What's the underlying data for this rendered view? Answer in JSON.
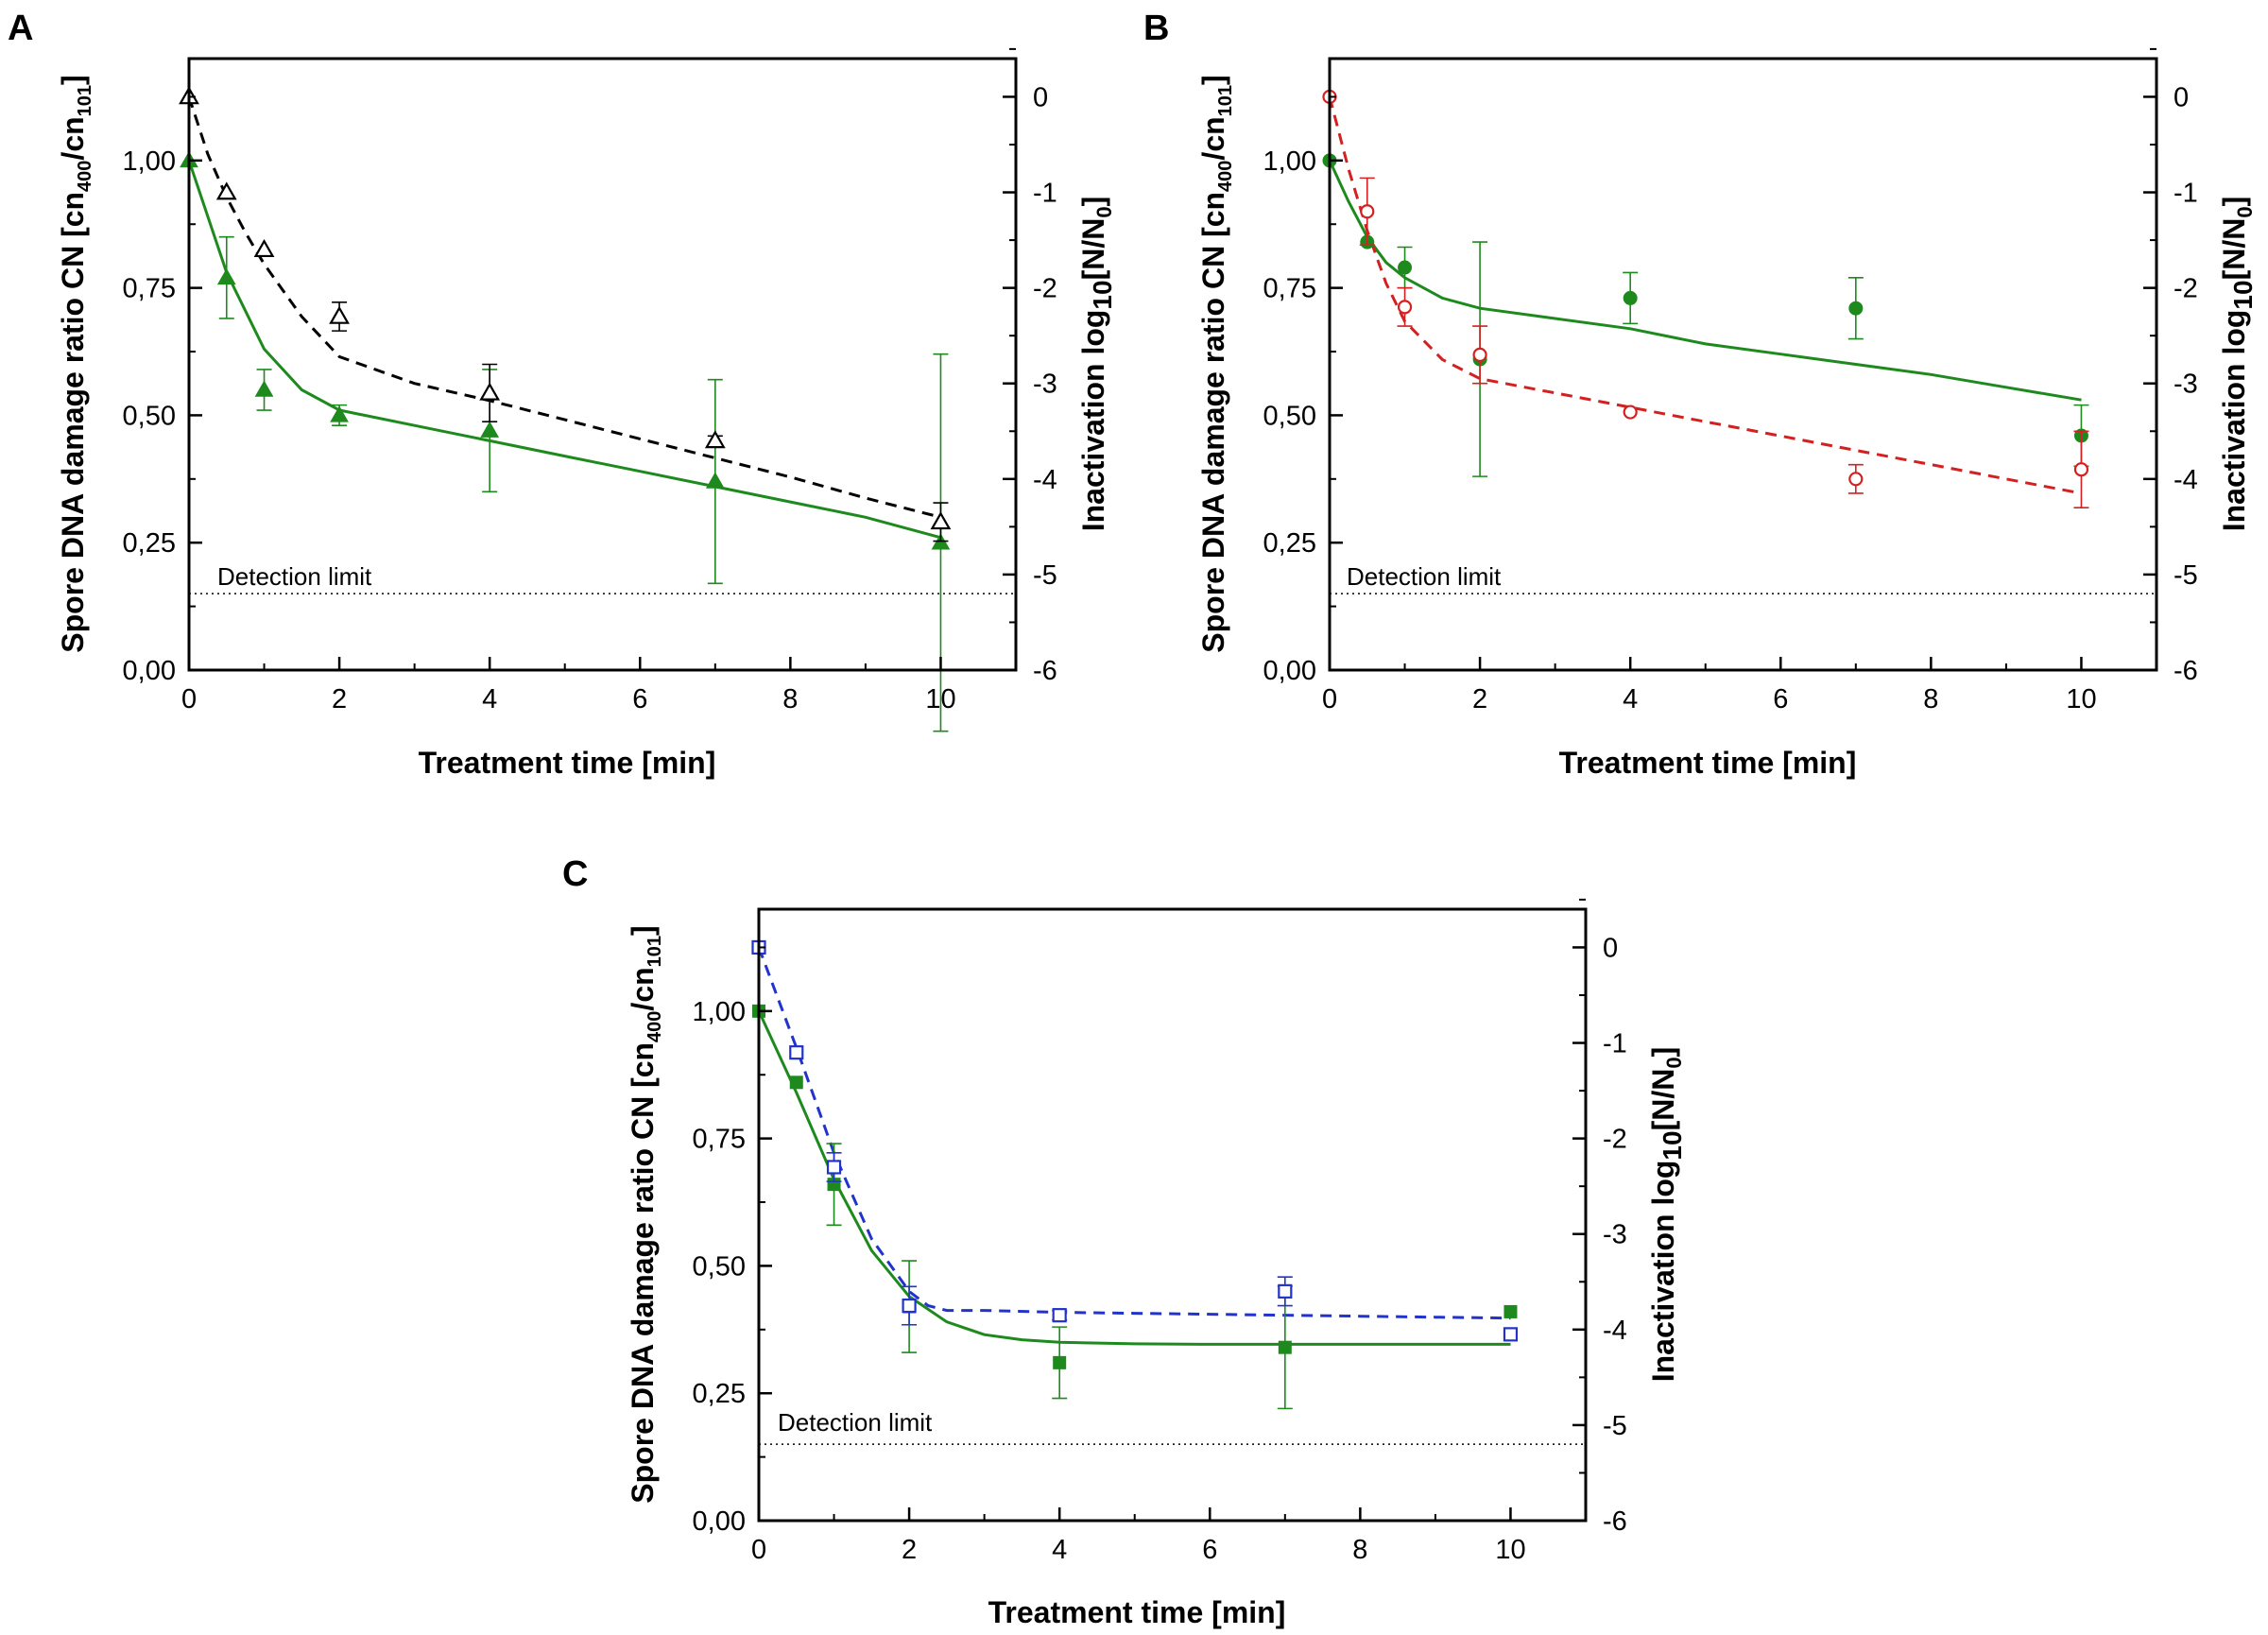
{
  "figure": {
    "common": {
      "xlabel": "Treatment time [min]",
      "ylabel_left_main": "Spore DNA damage ratio CN [cn",
      "ylabel_left_sub1": "400",
      "ylabel_left_mid": "/cn",
      "ylabel_left_sub2": "101",
      "ylabel_left_close": "]",
      "ylabel_right_main": "Inactivation log",
      "ylabel_right_sub": "10",
      "ylabel_right_mid": "[N/N",
      "ylabel_right_sub2": "0",
      "ylabel_right_close": "]",
      "x_ticks": [
        "0",
        "2",
        "4",
        "6",
        "8",
        "10"
      ],
      "y_left_ticks": [
        "0,00",
        "0,25",
        "0,50",
        "0,75",
        "1,00"
      ],
      "y_right_ticks": [
        "0",
        "-1",
        "-2",
        "-3",
        "-4",
        "-5",
        "-6"
      ],
      "detection_label": "Detection limit"
    },
    "colors": {
      "green": "#1e8a1e",
      "black": "#000000",
      "red": "#d42020",
      "blue": "#2233cc"
    }
  },
  "chart_data": [
    {
      "panel": "A",
      "type": "scatter",
      "xlabel": "Treatment time [min]",
      "ylabel": "Spore DNA damage ratio CN [cn400/cn101]",
      "ylabel_right": "Inactivation log10[N/N0]",
      "xlim": [
        0,
        11
      ],
      "ylim": [
        0,
        1.2
      ],
      "ylim_right": [
        -6,
        0.4
      ],
      "detection_limit_log": -5.2,
      "series": [
        {
          "name": "DNA damage ratio (filled triangles)",
          "axis": "left",
          "marker": "triangle-filled",
          "color": "#1e8a1e",
          "x": [
            0,
            0.5,
            1,
            2,
            4,
            7,
            10
          ],
          "y": [
            1.0,
            0.77,
            0.55,
            0.5,
            0.47,
            0.37,
            0.25
          ],
          "err": [
            0,
            0.08,
            0.04,
            0.02,
            0.12,
            0.2,
            0.37
          ]
        },
        {
          "name": "Inactivation (open triangles)",
          "axis": "right",
          "marker": "triangle-open",
          "color": "#000000",
          "x": [
            0,
            0.5,
            1,
            2,
            4,
            7,
            10
          ],
          "y": [
            0,
            -1,
            -1.6,
            -2.3,
            -3.1,
            -3.6,
            -4.45
          ],
          "err": [
            0,
            0,
            0,
            0.15,
            0.3,
            0.05,
            0.2
          ]
        }
      ],
      "fits": [
        {
          "axis": "left",
          "style": "solid",
          "color": "#1e8a1e",
          "x": [
            0,
            0.5,
            1,
            1.5,
            2,
            3,
            4,
            5,
            6,
            7,
            8,
            9,
            10
          ],
          "y": [
            1.0,
            0.78,
            0.63,
            0.55,
            0.51,
            0.48,
            0.45,
            0.42,
            0.39,
            0.36,
            0.33,
            0.3,
            0.26
          ]
        },
        {
          "axis": "right",
          "style": "dashed",
          "color": "#000000",
          "x": [
            0,
            0.25,
            0.5,
            0.75,
            1,
            1.5,
            2,
            3,
            4,
            5,
            6,
            7,
            8,
            9,
            10
          ],
          "y": [
            0,
            -0.6,
            -1.05,
            -1.42,
            -1.75,
            -2.3,
            -2.72,
            -3.0,
            -3.18,
            -3.38,
            -3.58,
            -3.78,
            -3.98,
            -4.2,
            -4.4
          ]
        }
      ]
    },
    {
      "panel": "B",
      "type": "scatter",
      "xlabel": "Treatment time [min]",
      "ylabel": "Spore DNA damage ratio CN [cn400/cn101]",
      "ylabel_right": "Inactivation log10[N/N0]",
      "xlim": [
        0,
        11
      ],
      "ylim": [
        0,
        1.2
      ],
      "ylim_right": [
        -6,
        0.4
      ],
      "detection_limit_log": -5.2,
      "series": [
        {
          "name": "DNA damage ratio (filled circles)",
          "axis": "left",
          "marker": "circle-filled",
          "color": "#1e8a1e",
          "x": [
            0,
            0.5,
            1,
            2,
            4,
            7,
            10
          ],
          "y": [
            1.0,
            0.84,
            0.79,
            0.61,
            0.73,
            0.71,
            0.46
          ],
          "err": [
            0,
            0,
            0.04,
            0.23,
            0.05,
            0.06,
            0.06
          ]
        },
        {
          "name": "Inactivation (open circles)",
          "axis": "right",
          "marker": "circle-open",
          "color": "#d42020",
          "x": [
            0,
            0.5,
            1,
            2,
            4,
            7,
            10
          ],
          "y": [
            0,
            -1.2,
            -2.2,
            -2.7,
            -3.3,
            -4.0,
            -3.9
          ],
          "err": [
            0,
            0.35,
            0.2,
            0.3,
            0,
            0.15,
            0.4
          ]
        }
      ],
      "fits": [
        {
          "axis": "left",
          "style": "solid",
          "color": "#1e8a1e",
          "x": [
            0,
            0.25,
            0.5,
            0.75,
            1,
            1.5,
            2,
            3,
            4,
            5,
            6,
            7,
            8,
            9,
            10
          ],
          "y": [
            1.0,
            0.92,
            0.85,
            0.8,
            0.77,
            0.73,
            0.71,
            0.69,
            0.67,
            0.64,
            0.62,
            0.6,
            0.58,
            0.555,
            0.53
          ]
        },
        {
          "axis": "right",
          "style": "dashed",
          "color": "#d42020",
          "x": [
            0,
            0.25,
            0.5,
            0.75,
            1,
            1.5,
            2,
            3,
            4,
            5,
            6,
            7,
            8,
            9,
            10
          ],
          "y": [
            0,
            -0.75,
            -1.4,
            -1.95,
            -2.35,
            -2.75,
            -2.95,
            -3.1,
            -3.25,
            -3.4,
            -3.55,
            -3.7,
            -3.85,
            -4.0,
            -4.15
          ]
        }
      ]
    },
    {
      "panel": "C",
      "type": "scatter",
      "xlabel": "Treatment time [min]",
      "ylabel": "Spore DNA damage ratio CN [cn400/cn101]",
      "ylabel_right": "Inactivation log10[N/N0]",
      "xlim": [
        0,
        11
      ],
      "ylim": [
        0,
        1.2
      ],
      "ylim_right": [
        -6,
        0.4
      ],
      "detection_limit_log": -5.2,
      "series": [
        {
          "name": "DNA damage ratio (filled squares)",
          "axis": "left",
          "marker": "square-filled",
          "color": "#1e8a1e",
          "x": [
            0,
            0.5,
            1,
            2,
            4,
            7,
            10
          ],
          "y": [
            1.0,
            0.86,
            0.66,
            0.42,
            0.31,
            0.34,
            0.41
          ],
          "err": [
            0,
            0,
            0.08,
            0.09,
            0.07,
            0.12,
            0
          ]
        },
        {
          "name": "Inactivation (open squares)",
          "axis": "right",
          "marker": "square-open",
          "color": "#2233cc",
          "x": [
            0,
            0.5,
            1,
            2,
            4,
            7,
            10
          ],
          "y": [
            0,
            -1.1,
            -2.3,
            -3.75,
            -3.85,
            -3.6,
            -4.05
          ],
          "err": [
            0,
            0,
            0.15,
            0.2,
            0.05,
            0.15,
            0
          ]
        }
      ],
      "fits": [
        {
          "axis": "left",
          "style": "solid",
          "color": "#1e8a1e",
          "x": [
            0,
            0.5,
            1,
            1.5,
            2,
            2.5,
            3,
            3.5,
            4,
            5,
            6,
            7,
            8,
            9,
            10
          ],
          "y": [
            1.0,
            0.84,
            0.67,
            0.53,
            0.44,
            0.39,
            0.365,
            0.355,
            0.35,
            0.347,
            0.346,
            0.346,
            0.346,
            0.346,
            0.346
          ]
        },
        {
          "axis": "right",
          "style": "dashed",
          "color": "#2233cc",
          "x": [
            0,
            0.5,
            1,
            1.5,
            2,
            2.25,
            2.5,
            3,
            4,
            5,
            6,
            7,
            8,
            9,
            10
          ],
          "y": [
            0,
            -1.05,
            -2.15,
            -3.05,
            -3.6,
            -3.75,
            -3.8,
            -3.8,
            -3.82,
            -3.83,
            -3.84,
            -3.85,
            -3.86,
            -3.87,
            -3.88
          ]
        }
      ]
    }
  ]
}
